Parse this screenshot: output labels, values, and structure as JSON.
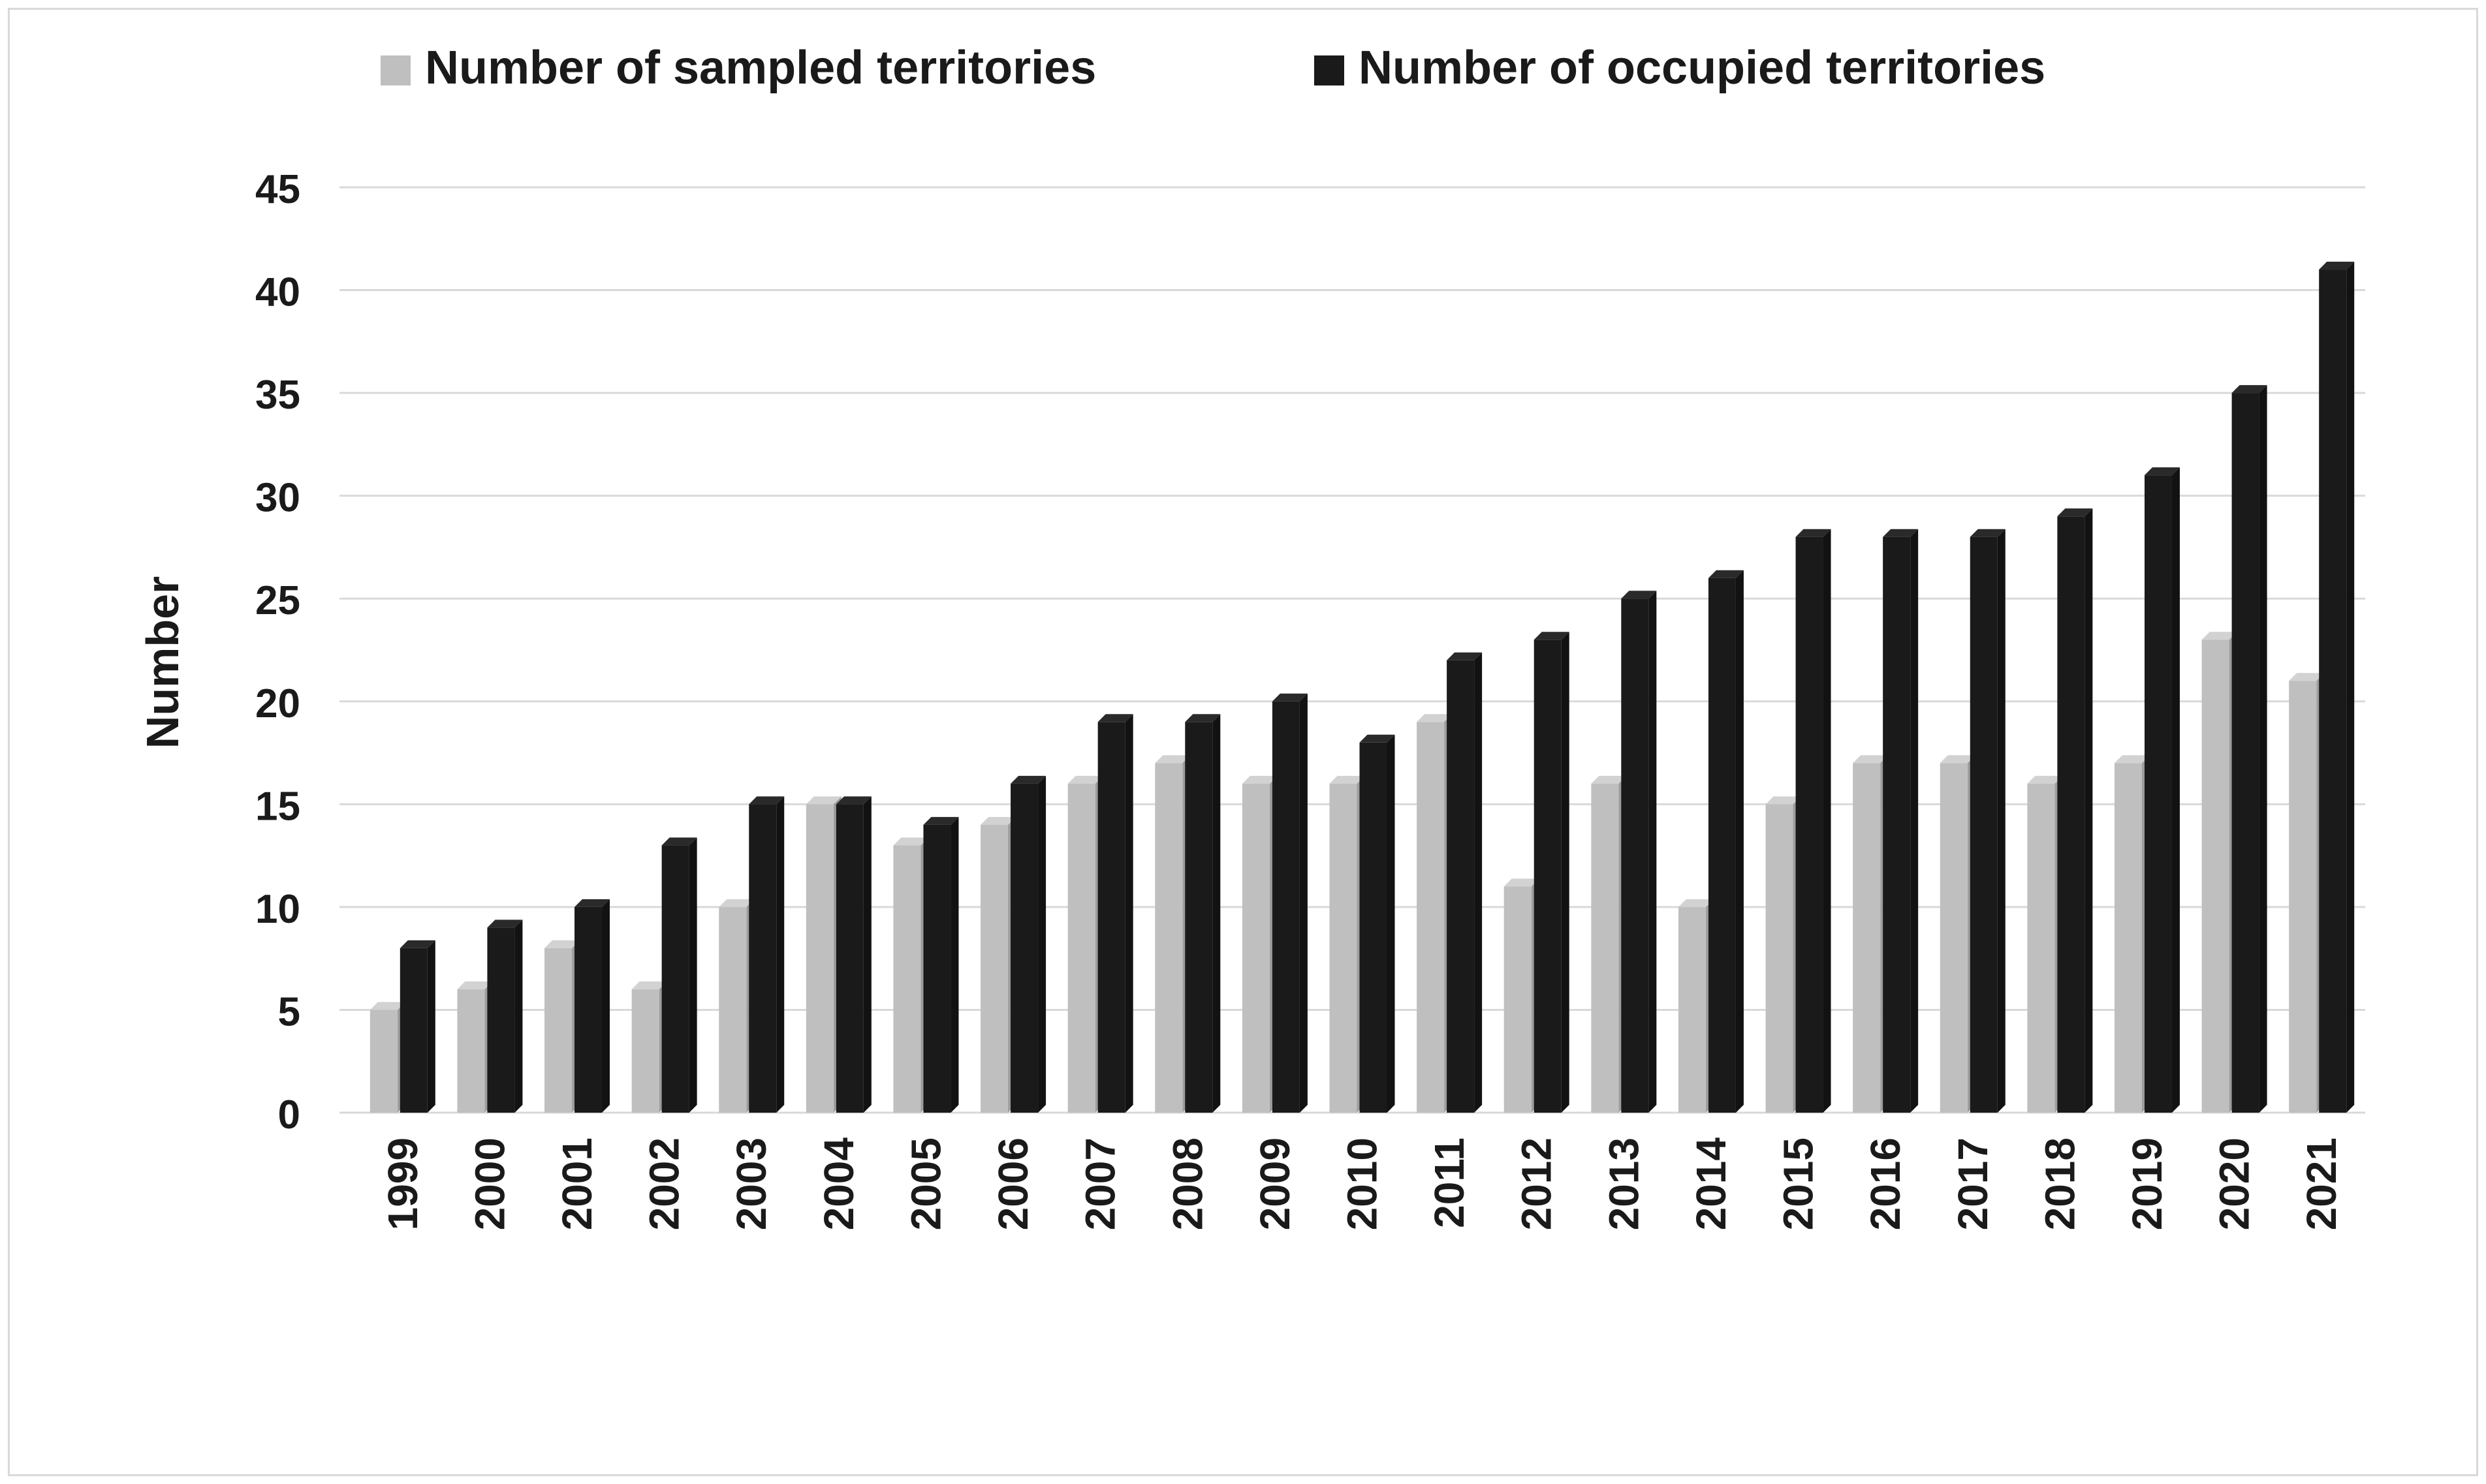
{
  "chart_data": {
    "type": "bar",
    "title": "",
    "xlabel": "",
    "ylabel": "Number",
    "ylim": [
      0,
      45
    ],
    "yticks": [
      0,
      5,
      10,
      15,
      20,
      25,
      30,
      35,
      40,
      45
    ],
    "grid": true,
    "legend_position": "top",
    "categories": [
      "1999",
      "2000",
      "2001",
      "2002",
      "2003",
      "2004",
      "2005",
      "2006",
      "2007",
      "2008",
      "2009",
      "2010",
      "2011",
      "2012",
      "2013",
      "2014",
      "2015",
      "2016",
      "2017",
      "2018",
      "2019",
      "2020",
      "2021"
    ],
    "series": [
      {
        "name": "Number of sampled territories",
        "color": "#bfbfbf",
        "values": [
          5,
          6,
          8,
          6,
          10,
          15,
          13,
          14,
          16,
          17,
          16,
          16,
          19,
          11,
          16,
          10,
          15,
          17,
          17,
          16,
          17,
          23,
          21
        ]
      },
      {
        "name": "Number of occupied territories",
        "color": "#1a1a1a",
        "values": [
          8,
          9,
          10,
          13,
          15,
          15,
          14,
          16,
          19,
          19,
          20,
          18,
          22,
          23,
          25,
          26,
          28,
          28,
          28,
          29,
          31,
          35,
          41
        ]
      }
    ]
  }
}
